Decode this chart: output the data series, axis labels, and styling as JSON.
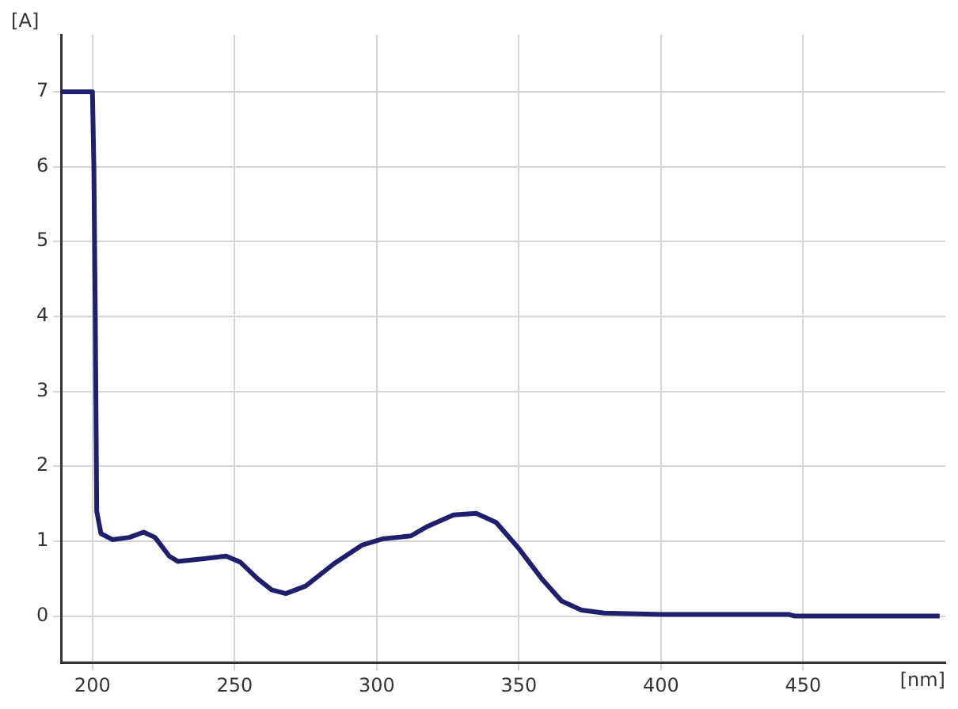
{
  "chart_data": {
    "type": "line",
    "xlabel": "[nm]",
    "ylabel": "[A]",
    "xlim": [
      189,
      500
    ],
    "ylim": [
      -0.62,
      7.76
    ],
    "xticks": [
      200,
      250,
      300,
      350,
      400,
      450
    ],
    "yticks": [
      0,
      1,
      2,
      3,
      4,
      5,
      6,
      7
    ],
    "grid": true,
    "legend": false,
    "marker": "none",
    "line_style": "solid",
    "series": [
      {
        "color": "#1f1f6e",
        "x": [
          189,
          200,
          200.5,
          201,
          201.5,
          203,
          207,
          213,
          218,
          222,
          227,
          230,
          238,
          247,
          252,
          258,
          263,
          268,
          275,
          285,
          295,
          302,
          312,
          318,
          327,
          335,
          342,
          350,
          358,
          365,
          372,
          380,
          400,
          445,
          447,
          498
        ],
        "values": [
          7,
          7,
          6,
          4,
          1.4,
          1.1,
          1.02,
          1.05,
          1.12,
          1.05,
          0.8,
          0.73,
          0.76,
          0.8,
          0.72,
          0.5,
          0.35,
          0.3,
          0.4,
          0.7,
          0.95,
          1.03,
          1.07,
          1.2,
          1.35,
          1.37,
          1.25,
          0.9,
          0.5,
          0.2,
          0.08,
          0.04,
          0.02,
          0.02,
          0,
          0
        ]
      }
    ]
  }
}
